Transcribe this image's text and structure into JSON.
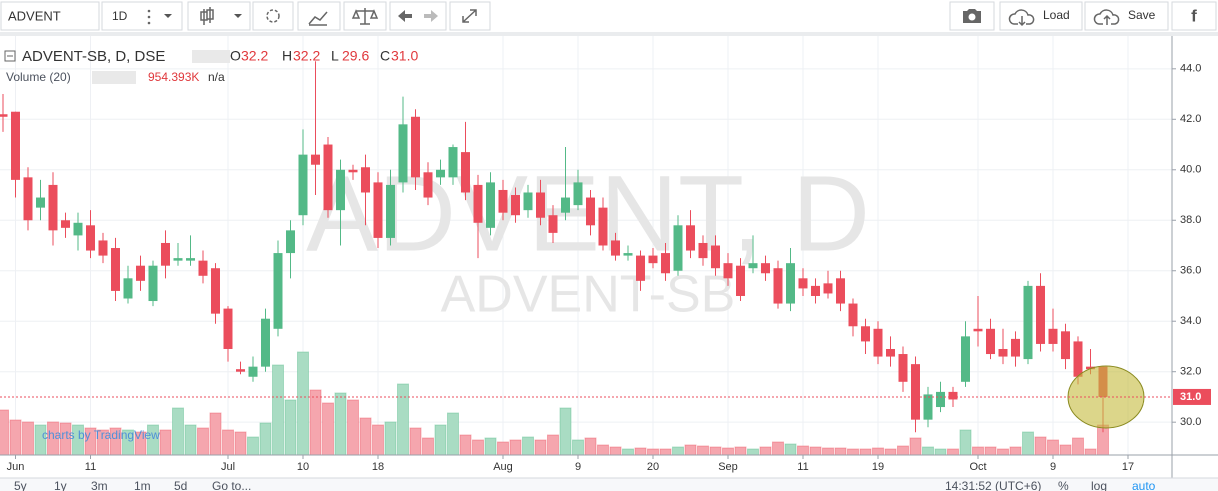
{
  "toolbar": {
    "symbol": "ADVENT",
    "interval": "1D",
    "load": "Load",
    "save": "Save",
    "facebook": "f"
  },
  "bottom_bar": {
    "ranges": [
      "5y",
      "1y",
      "3m",
      "1m",
      "5d"
    ],
    "goto": "Go to...",
    "time": "14:31:52 (UTC+6)",
    "percent": "%",
    "log": "log",
    "auto": "auto"
  },
  "watermark": {
    "main": "ADVENT, D",
    "sub": "ADVENT-SB"
  },
  "branding": "charts by TradingView",
  "chart_data": {
    "type": "candlestick",
    "title": "ADVENT-SB, D, DSE",
    "ohlc_letters": [
      "O",
      "H",
      "L",
      "C"
    ],
    "ohlc_labels": [
      "32.2",
      "32.2",
      "29.6",
      "31.0"
    ],
    "up_color": "#53b987",
    "down_color": "#eb4d5c",
    "volume_up_color": "#a9dcc3",
    "volume_down_color": "#f5a6ae",
    "open": [
      42.2,
      42.3,
      39.7,
      38.5,
      39.4,
      38.0,
      37.4,
      37.8,
      37.2,
      36.9,
      34.9,
      36.2,
      34.8,
      37.1,
      36.4,
      36.4,
      36.4,
      36.1,
      34.5,
      32.1,
      31.8,
      32.2,
      33.7,
      36.7,
      38.2,
      40.6,
      41.0,
      38.4,
      40.0,
      40.1,
      39.5,
      37.3,
      39.5,
      42.1,
      39.9,
      39.7,
      39.7,
      40.7,
      39.4,
      37.7,
      39.2,
      39.0,
      38.4,
      39.1,
      38.2,
      38.3,
      38.6,
      38.9,
      38.5,
      37.2,
      36.6,
      36.6,
      36.6,
      36.7,
      36.0,
      37.8,
      37.1,
      37.0,
      36.3,
      36.2,
      36.1,
      36.3,
      36.1,
      34.7,
      35.7,
      35.4,
      35.5,
      35.7,
      34.7,
      33.8,
      33.7,
      32.9,
      32.7,
      32.3,
      30.1,
      30.6,
      31.2,
      31.6,
      33.7,
      33.7,
      32.9,
      33.3,
      32.5,
      35.4,
      33.7,
      33.6,
      33.2,
      32.2,
      32.2
    ],
    "high": [
      43.0,
      42.3,
      40.1,
      39.6,
      39.9,
      38.3,
      38.3,
      38.4,
      37.5,
      37.3,
      36.2,
      36.6,
      36.4,
      37.6,
      37.1,
      37.4,
      36.8,
      36.3,
      34.6,
      32.4,
      32.6,
      34.5,
      37.2,
      38.0,
      41.6,
      44.3,
      41.3,
      40.4,
      40.2,
      40.6,
      39.9,
      40.0,
      42.9,
      42.4,
      40.3,
      40.4,
      41.0,
      41.9,
      39.8,
      39.9,
      39.6,
      39.3,
      39.4,
      39.6,
      38.6,
      40.9,
      40.0,
      39.2,
      38.9,
      37.5,
      37.0,
      36.8,
      36.9,
      37.1,
      38.2,
      38.4,
      37.4,
      37.4,
      36.7,
      36.5,
      37.4,
      36.6,
      36.4,
      36.9,
      36.1,
      35.7,
      36.0,
      36.0,
      34.9,
      34.1,
      34.0,
      33.4,
      33.0,
      32.6,
      31.4,
      31.6,
      31.4,
      34.0,
      35.0,
      34.1,
      33.7,
      33.6,
      35.6,
      35.9,
      34.5,
      33.9,
      33.4,
      32.9,
      32.2
    ],
    "low": [
      41.5,
      38.9,
      37.6,
      38.0,
      37.0,
      37.3,
      36.8,
      36.5,
      36.3,
      34.8,
      34.7,
      35.2,
      34.6,
      35.7,
      36.2,
      36.2,
      35.5,
      33.9,
      32.4,
      31.9,
      31.6,
      32.0,
      33.4,
      35.7,
      37.8,
      39.0,
      38.1,
      37.0,
      39.6,
      37.8,
      36.9,
      37.0,
      39.1,
      39.2,
      38.6,
      39.4,
      39.4,
      38.8,
      36.5,
      37.4,
      38.0,
      37.9,
      38.1,
      37.8,
      37.1,
      38.0,
      38.4,
      37.4,
      36.8,
      36.4,
      36.4,
      35.2,
      36.1,
      35.6,
      35.8,
      36.5,
      36.2,
      35.8,
      35.4,
      34.8,
      35.9,
      35.6,
      34.5,
      34.4,
      35.0,
      34.7,
      34.9,
      34.4,
      33.4,
      32.7,
      32.3,
      32.2,
      31.2,
      29.6,
      29.8,
      30.4,
      30.6,
      31.4,
      33.0,
      32.5,
      32.3,
      32.2,
      32.3,
      32.8,
      32.8,
      32.1,
      31.5,
      31.9,
      29.6
    ],
    "close": [
      42.1,
      39.6,
      38.0,
      38.9,
      37.6,
      37.7,
      37.9,
      36.8,
      36.6,
      35.2,
      35.7,
      35.6,
      36.2,
      36.2,
      36.5,
      36.5,
      35.8,
      34.3,
      32.9,
      32.0,
      32.2,
      34.1,
      36.7,
      37.6,
      40.6,
      40.2,
      38.4,
      40.0,
      39.9,
      39.1,
      37.3,
      39.4,
      41.8,
      39.7,
      38.9,
      40.0,
      40.9,
      39.1,
      37.9,
      39.5,
      38.3,
      38.2,
      39.1,
      38.1,
      37.5,
      38.9,
      39.5,
      37.8,
      37.0,
      36.6,
      36.7,
      35.6,
      36.3,
      35.9,
      37.8,
      36.8,
      36.5,
      36.1,
      35.7,
      35.0,
      36.3,
      35.9,
      34.7,
      36.3,
      35.3,
      35.0,
      35.1,
      34.7,
      33.8,
      33.2,
      32.6,
      32.6,
      31.6,
      30.1,
      31.1,
      31.2,
      30.9,
      33.4,
      33.6,
      32.7,
      32.6,
      32.6,
      35.4,
      33.1,
      33.1,
      32.5,
      31.8,
      32.1,
      31.0
    ],
    "volume": {
      "name": "Volume (20)",
      "value_label": "954.393K",
      "ma_label": "n/a",
      "values": [
        1431000,
        1113000,
        1049400,
        954000,
        1049400,
        1017600,
        954000,
        858600,
        795000,
        858600,
        795000,
        731400,
        954000,
        795000,
        1494600,
        954000,
        858600,
        1335600,
        795000,
        731400,
        572400,
        1017600,
        2862000,
        1749000,
        3275400,
        2067000,
        1653600,
        1971600,
        1749000,
        1176600,
        954000,
        1049400,
        2257800,
        858600,
        540600,
        954000,
        1335600,
        636000,
        477000,
        540600,
        413400,
        477000,
        572400,
        477000,
        636000,
        1494600,
        477000,
        540600,
        318000,
        254400,
        190800,
        222600,
        190800,
        190800,
        254400,
        318000,
        286200,
        254400,
        222600,
        254400,
        190800,
        254400,
        413400,
        349800,
        286200,
        254400,
        222600,
        222600,
        190800,
        190800,
        222600,
        190800,
        286200,
        540600,
        254400,
        190800,
        190800,
        795000,
        254400,
        254400,
        190800,
        254400,
        731400,
        572400,
        477000,
        318000,
        540600,
        190800,
        954393
      ]
    },
    "ylim": [
      28.7,
      45.3
    ],
    "yticks": [
      {
        "value": 30,
        "label": "30.0"
      },
      {
        "value": 32,
        "label": "32.0"
      },
      {
        "value": 34,
        "label": "34.0"
      },
      {
        "value": 36,
        "label": "36.0"
      },
      {
        "value": 38,
        "label": "38.0"
      },
      {
        "value": 40,
        "label": "40.0"
      },
      {
        "value": 42,
        "label": "42.0"
      },
      {
        "value": 44,
        "label": "44.0"
      }
    ],
    "xlim": [
      -0.24,
      93.52
    ],
    "xticks": [
      {
        "value": 1,
        "label": "Jun"
      },
      {
        "value": 7,
        "label": "11"
      },
      {
        "value": 18,
        "label": "Jul"
      },
      {
        "value": 24,
        "label": "10"
      },
      {
        "value": 30,
        "label": "18"
      },
      {
        "value": 40,
        "label": "Aug"
      },
      {
        "value": 46,
        "label": "9"
      },
      {
        "value": 52,
        "label": "20"
      },
      {
        "value": 58,
        "label": "Sep"
      },
      {
        "value": 64,
        "label": "11"
      },
      {
        "value": 70,
        "label": "19"
      },
      {
        "value": 78,
        "label": "Oct"
      },
      {
        "value": 84,
        "label": "9"
      },
      {
        "value": 90,
        "label": "17"
      }
    ],
    "last_price": {
      "value": 31.0,
      "label": "31.0",
      "color": "#eb4d5c"
    },
    "grid": true
  }
}
